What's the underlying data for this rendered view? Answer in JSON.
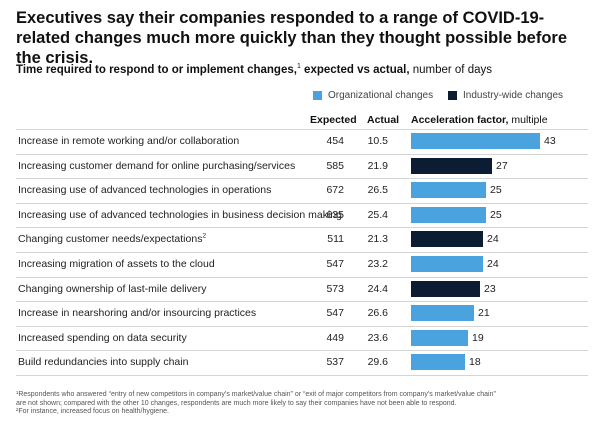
{
  "title": "Executives say their companies responded to a range of COVID-19-related changes much more quickly than they thought possible before the crisis.",
  "subtitle": {
    "bold": "Time required to respond to or implement changes,",
    "sup": "1",
    "bold2": " expected vs actual,",
    "rest": " number of days"
  },
  "legend": {
    "organizational": "Organizational changes",
    "industry": "Industry-wide changes"
  },
  "colors": {
    "organizational": "#4aa3df",
    "industry": "#0c1d33"
  },
  "columns": {
    "expected": "Expected",
    "actual": "Actual",
    "acceleration": "Acceleration factor,",
    "acceleration_unit": " multiple"
  },
  "chart_data": {
    "type": "bar",
    "title": "Time required to respond to or implement changes, expected vs actual, number of days",
    "categories": [
      "Increase in remote working and/or collaboration",
      "Increasing customer demand for online purchasing/services",
      "Increasing use of advanced technologies in operations",
      "Increasing use of advanced technologies in business decision making",
      "Changing customer needs/expectations",
      "Increasing migration of assets to the cloud",
      "Changing ownership of last-mile delivery",
      "Increase in nearshoring and/or insourcing practices",
      "Increased spending on data security",
      "Build redundancies into supply chain"
    ],
    "category_superscripts": [
      "",
      "",
      "",
      "",
      "2",
      "",
      "",
      "",
      "",
      ""
    ],
    "expected": [
      454,
      585,
      672,
      635,
      511,
      547,
      573,
      547,
      449,
      537
    ],
    "actual": [
      "10.5",
      "21.9",
      "26.5",
      "25.4",
      "21.3",
      "23.2",
      "24.4",
      "26.6",
      "23.6",
      "29.6"
    ],
    "series": [
      {
        "name": "Acceleration factor, multiple",
        "values": [
          43,
          27,
          25,
          25,
          24,
          24,
          23,
          21,
          19,
          18
        ]
      }
    ],
    "change_type": [
      "organizational",
      "industry",
      "organizational",
      "organizational",
      "industry",
      "organizational",
      "industry",
      "organizational",
      "organizational",
      "organizational"
    ],
    "xlim": [
      0,
      43
    ],
    "legend_position": "top-right",
    "grid": false
  },
  "footnotes": [
    "¹Respondents who answered “entry of new competitors in company’s market/value chain” or “exit of major competitors from company’s market/value chain”",
    "   are not shown; compared with the other 10 changes, respondents are much more likely to say their companies have not been able to respond.",
    "²For instance, increased focus on health/hygiene."
  ]
}
